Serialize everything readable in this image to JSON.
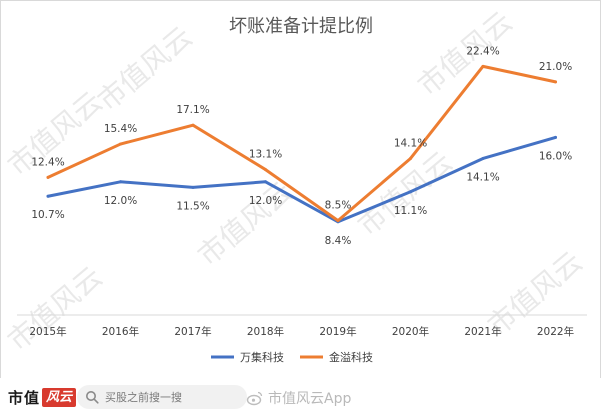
{
  "chart_data": {
    "type": "line",
    "title": "坏账准备计提比例",
    "categories": [
      "2015年",
      "2016年",
      "2017年",
      "2018年",
      "2019年",
      "2020年",
      "2021年",
      "2022年"
    ],
    "series": [
      {
        "name": "万集科技",
        "color": "#4472C4",
        "values": [
          10.7,
          12.0,
          11.5,
          12.0,
          8.4,
          11.1,
          14.1,
          16.0
        ]
      },
      {
        "name": "金溢科技",
        "color": "#ED7D31",
        "values": [
          12.4,
          15.4,
          17.1,
          13.1,
          8.5,
          14.1,
          22.4,
          21.0
        ]
      }
    ],
    "data_labels": {
      "万集科技": [
        "10.7%",
        "12.0%",
        "11.5%",
        "12.0%",
        "8.4%",
        "11.1%",
        "14.1%",
        "16.0%"
      ],
      "金溢科技": [
        "12.4%",
        "15.4%",
        "17.1%",
        "13.1%",
        "8.5%",
        "14.1%",
        "22.4%",
        "21.0%"
      ]
    },
    "ylim": [
      0,
      25
    ],
    "grid": false,
    "legend_position": "bottom-center",
    "watermark": "市值风云"
  },
  "footer": {
    "brand_text": "市值",
    "brand_mark": "风云",
    "search_placeholder": "买股之前搜一搜",
    "app_watermark": "市值风云App",
    "search_icon": "search-icon",
    "accent_color": "#d83a2e"
  }
}
